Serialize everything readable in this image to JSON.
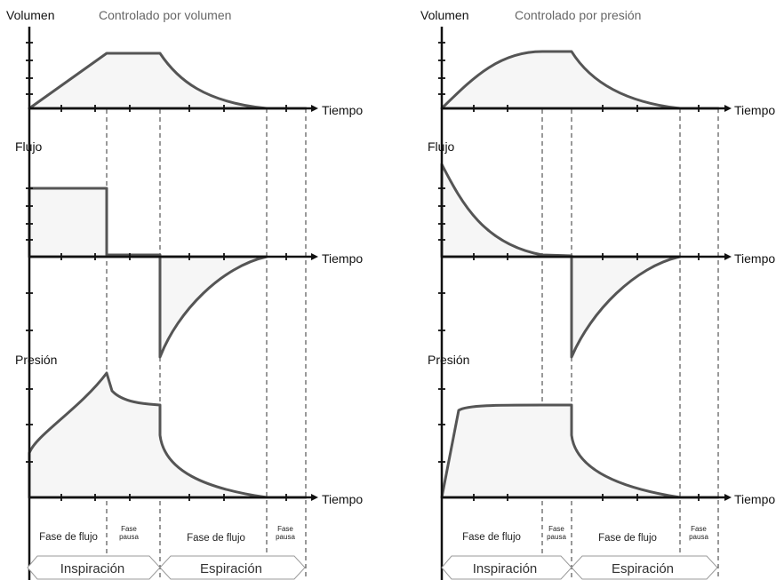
{
  "panels": [
    {
      "id": "left",
      "title": "Controlado por volumen",
      "volume_label": "Volumen",
      "flow_label": "Flujo",
      "pressure_label": "Presión",
      "time_label": "Tiempo",
      "phases": {
        "flow1": "Fase de flujo",
        "pause1": [
          "Fase",
          "pausa"
        ],
        "flow2": "Fase de flujo",
        "pause2": [
          "Fase",
          "pausa"
        ]
      },
      "bands": {
        "inspiration": "Inspiración",
        "expiration": "Espiración"
      },
      "curves": {
        "volume": "linear rise, plateau, exponential decay",
        "flow": "square inspiratory flow, zero pause, negative exponential expiratory flow",
        "pressure": "ramp to peak, drop to plateau, exponential decay"
      }
    },
    {
      "id": "right",
      "title": "Controlado por presión",
      "volume_label": "Volumen",
      "flow_label": "Flujo",
      "pressure_label": "Presión",
      "time_label": "Tiempo",
      "phases": {
        "flow1": "Fase de flujo",
        "pause1": [
          "Fase",
          "pausa"
        ],
        "flow2": "Fase de flujo",
        "pause2": [
          "Fase",
          "pausa"
        ]
      },
      "bands": {
        "inspiration": "Inspiración",
        "expiration": "Espiración"
      },
      "curves": {
        "volume": "concave rise to plateau, exponential decay",
        "flow": "decelerating inspiratory flow, negative exponential expiratory flow",
        "pressure": "square pressure, exponential decay"
      }
    }
  ]
}
